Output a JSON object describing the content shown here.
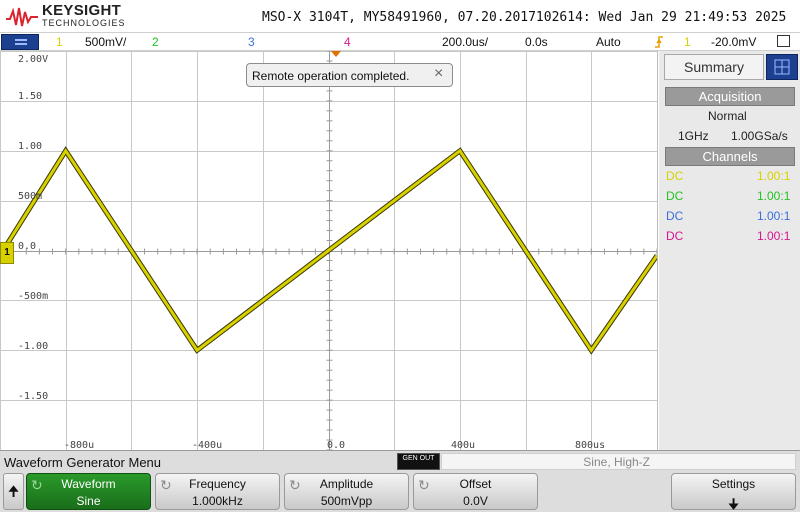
{
  "header": {
    "brand": "KEYSIGHT",
    "brand_sub": "TECHNOLOGIES",
    "device_info": "MSO-X 3104T, MY58491960, 07.20.2017102614: Wed Jan 29 21:49:53 2025"
  },
  "channel_bar": {
    "ch1_num": "1",
    "ch1_scale": "500mV/",
    "ch2_num": "2",
    "ch3_num": "3",
    "ch4_num": "4",
    "timebase": "200.0us/",
    "delay": "0.0s",
    "trigger_mode": "Auto",
    "trigger_source": "1",
    "trigger_level": "-20.0mV",
    "colors": {
      "ch1": "#d8d100",
      "ch2": "#22c322",
      "ch3": "#3a6fe0",
      "ch4": "#d8168f",
      "trigger": "#e8a000"
    }
  },
  "notification": {
    "message": "Remote operation completed.",
    "close_icon": "×"
  },
  "axes": {
    "y_labels": [
      "2.00V",
      "1.50",
      "1.00",
      "500m",
      "0.0",
      "-500m",
      "-1.00",
      "-1.50"
    ],
    "x_labels": [
      "-800u",
      "-400u",
      "0.0",
      "400u",
      "800us"
    ]
  },
  "chart_data": {
    "type": "line",
    "series": [
      {
        "x": [
          -1000,
          -800,
          -400,
          0,
          400,
          800,
          1000
        ],
        "y": [
          -0.05,
          1.0,
          -1.0,
          0.0,
          1.0,
          -1.0,
          -0.05
        ]
      }
    ],
    "xlim": [
      -1000,
      1000
    ],
    "ylim": [
      -2.0,
      2.0
    ],
    "grid": true
  },
  "ground_marker": "1",
  "right_panel": {
    "tab_label": "Summary",
    "acquisition_title": "Acquisition",
    "acquisition_mode": "Normal",
    "bandwidth": "1GHz",
    "sample_rate": "1.00GSa/s",
    "channels_title": "Channels",
    "channels": [
      {
        "coupling": "DC",
        "probe": "1.00:1",
        "color": "#d8d100"
      },
      {
        "coupling": "DC",
        "probe": "1.00:1",
        "color": "#22c322"
      },
      {
        "coupling": "DC",
        "probe": "1.00:1",
        "color": "#3a6fe0"
      },
      {
        "coupling": "DC",
        "probe": "1.00:1",
        "color": "#d8168f"
      }
    ]
  },
  "softkeys": {
    "menu_title": "Waveform Generator Menu",
    "gen_out": "GEN OUT",
    "gen_status": "Sine, High-Z",
    "up_icon": "🠉",
    "waveform": {
      "title": "Waveform",
      "value": "Sine"
    },
    "frequency": {
      "title": "Frequency",
      "value": "1.000kHz"
    },
    "amplitude": {
      "title": "Amplitude",
      "value": "500mVpp"
    },
    "offset": {
      "title": "Offset",
      "value": "0.0V"
    },
    "settings": {
      "title": "Settings",
      "arrow": "🠋"
    }
  }
}
